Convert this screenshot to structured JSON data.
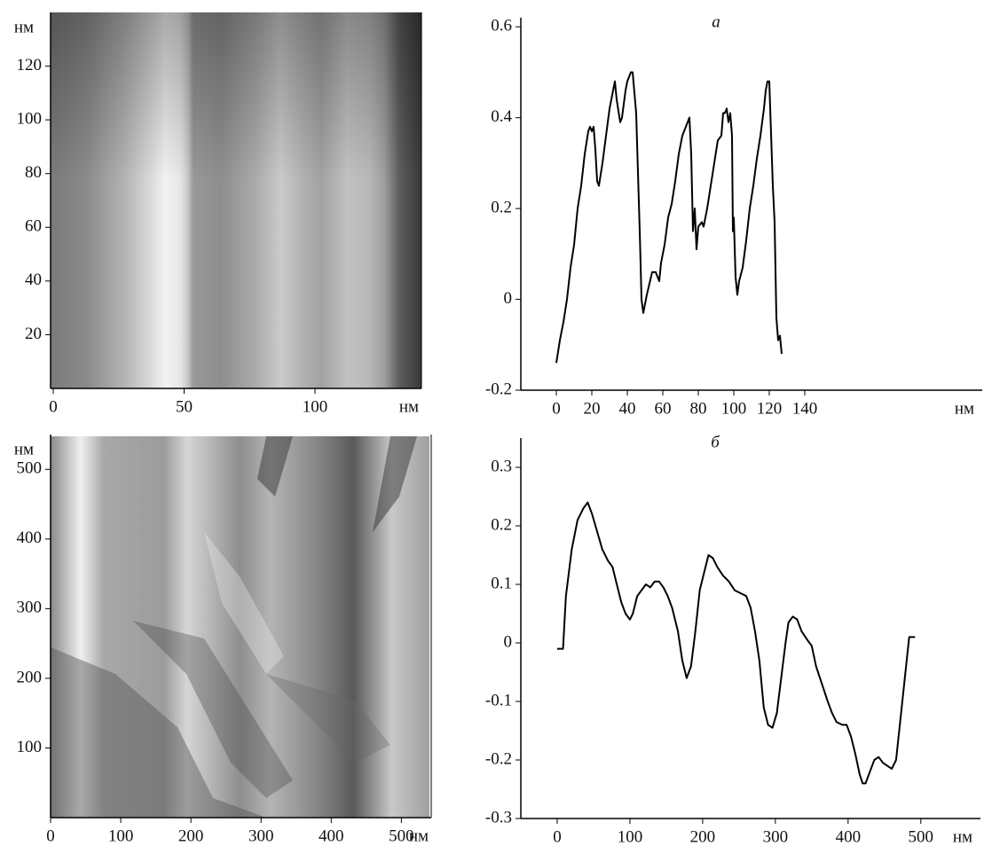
{
  "chart_data": [
    {
      "type": "image",
      "xlim": [
        0,
        140
      ],
      "ylim": [
        0,
        140
      ],
      "xticks": [
        0,
        50,
        100
      ],
      "yticks": [
        20,
        40,
        60,
        80,
        100,
        120
      ],
      "xlabel": "нм",
      "ylabel": "нм"
    },
    {
      "type": "image",
      "xlim": [
        0,
        540
      ],
      "ylim": [
        0,
        550
      ],
      "xticks": [
        0,
        100,
        200,
        300,
        400,
        500
      ],
      "yticks": [
        100,
        200,
        300,
        400,
        500
      ],
      "xlabel": "нм",
      "ylabel": "нм"
    },
    {
      "type": "line",
      "title": "а",
      "color": "#000000",
      "xlabel": "нм",
      "xlim": [
        -20,
        240
      ],
      "ylim": [
        -0.2,
        0.62
      ],
      "xticks": [
        0,
        20,
        40,
        60,
        80,
        100,
        120,
        140
      ],
      "yticks": [
        -0.2,
        0,
        0.2,
        0.4,
        0.6
      ],
      "x": [
        0,
        2,
        4,
        6,
        8,
        10,
        12,
        14,
        16,
        18,
        19,
        20,
        21,
        22,
        23,
        24,
        26,
        28,
        30,
        32,
        33,
        34,
        36,
        37,
        38,
        39,
        40,
        42,
        43,
        45,
        47,
        48,
        49,
        51,
        54,
        56,
        58,
        59,
        61,
        63,
        65,
        67,
        69,
        71,
        72,
        74,
        75,
        76,
        77,
        78,
        79,
        80,
        82,
        83,
        85,
        87,
        89,
        91,
        93,
        94,
        95,
        96,
        97,
        98,
        99,
        99.5,
        100,
        101,
        102,
        103,
        105,
        107,
        109,
        111,
        113,
        115,
        117,
        118,
        119,
        120,
        122,
        123,
        124,
        125,
        126,
        127
      ],
      "values": [
        -0.14,
        -0.09,
        -0.05,
        0.0,
        0.07,
        0.12,
        0.2,
        0.25,
        0.32,
        0.37,
        0.38,
        0.37,
        0.38,
        0.33,
        0.26,
        0.25,
        0.3,
        0.36,
        0.42,
        0.46,
        0.48,
        0.44,
        0.39,
        0.4,
        0.43,
        0.46,
        0.48,
        0.5,
        0.5,
        0.41,
        0.15,
        0.0,
        -0.03,
        0.01,
        0.06,
        0.06,
        0.04,
        0.08,
        0.12,
        0.18,
        0.21,
        0.26,
        0.32,
        0.36,
        0.37,
        0.39,
        0.4,
        0.32,
        0.15,
        0.2,
        0.11,
        0.16,
        0.17,
        0.16,
        0.2,
        0.25,
        0.3,
        0.35,
        0.36,
        0.41,
        0.41,
        0.42,
        0.39,
        0.41,
        0.36,
        0.15,
        0.18,
        0.05,
        0.01,
        0.04,
        0.07,
        0.13,
        0.2,
        0.25,
        0.31,
        0.36,
        0.42,
        0.46,
        0.48,
        0.48,
        0.25,
        0.17,
        -0.04,
        -0.09,
        -0.08,
        -0.12
      ]
    },
    {
      "type": "line",
      "title": "б",
      "color": "#000000",
      "xlabel": "нм",
      "xlim": [
        -50,
        582
      ],
      "ylim": [
        -0.3,
        0.35
      ],
      "xticks": [
        0,
        100,
        200,
        300,
        400,
        500
      ],
      "yticks": [
        -0.3,
        -0.2,
        -0.1,
        0,
        0.1,
        0.2,
        0.3
      ],
      "x": [
        0,
        8,
        12,
        20,
        28,
        36,
        42,
        48,
        55,
        62,
        70,
        76,
        82,
        88,
        94,
        100,
        104,
        110,
        116,
        122,
        128,
        134,
        140,
        146,
        152,
        158,
        166,
        172,
        178,
        184,
        190,
        196,
        202,
        208,
        214,
        220,
        228,
        236,
        244,
        252,
        260,
        266,
        272,
        278,
        284,
        290,
        296,
        302,
        308,
        314,
        318,
        324,
        330,
        336,
        344,
        350,
        356,
        364,
        372,
        378,
        384,
        392,
        398,
        404,
        410,
        416,
        420,
        424,
        430,
        436,
        442,
        448,
        454,
        460,
        466,
        472,
        478,
        484,
        492
      ],
      "values": [
        -0.01,
        -0.01,
        0.08,
        0.16,
        0.21,
        0.23,
        0.24,
        0.22,
        0.19,
        0.16,
        0.14,
        0.13,
        0.1,
        0.07,
        0.05,
        0.04,
        0.05,
        0.08,
        0.09,
        0.1,
        0.095,
        0.105,
        0.105,
        0.095,
        0.08,
        0.06,
        0.02,
        -0.03,
        -0.06,
        -0.04,
        0.02,
        0.09,
        0.12,
        0.15,
        0.145,
        0.13,
        0.115,
        0.105,
        0.09,
        0.085,
        0.08,
        0.06,
        0.02,
        -0.03,
        -0.11,
        -0.14,
        -0.145,
        -0.12,
        -0.06,
        0.0,
        0.035,
        0.045,
        0.04,
        0.02,
        0.005,
        -0.005,
        -0.04,
        -0.07,
        -0.1,
        -0.12,
        -0.135,
        -0.14,
        -0.14,
        -0.16,
        -0.19,
        -0.225,
        -0.24,
        -0.24,
        -0.22,
        -0.2,
        -0.195,
        -0.205,
        -0.21,
        -0.215,
        -0.2,
        -0.13,
        -0.06,
        0.01,
        0.01
      ]
    }
  ]
}
